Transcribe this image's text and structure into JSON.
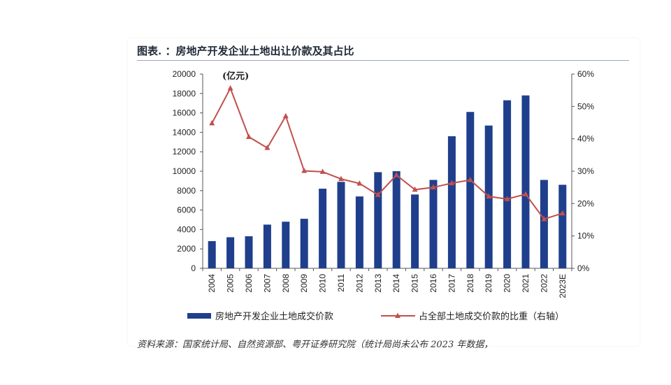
{
  "header": {
    "title": "图表. ：房地产开发企业土地出让价款及其占比"
  },
  "footer": {
    "source": "资料来源：国家统计局、自然资源部、粤开证券研究院（统计局尚未公布 2023 年数据，"
  },
  "chart_data": {
    "type": "bar",
    "title": "图表. ：房地产开发企业土地出让价款及其占比",
    "unit_label": "(亿元)",
    "categories": [
      "2004",
      "2005",
      "2006",
      "2007",
      "2008",
      "2009",
      "2010",
      "2011",
      "2012",
      "2013",
      "2014",
      "2015",
      "2016",
      "2017",
      "2018",
      "2019",
      "2020",
      "2021",
      "2022",
      "2023E"
    ],
    "y_left": {
      "min": 0,
      "max": 20000,
      "ticks": [
        "0",
        "2000",
        "4000",
        "6000",
        "8000",
        "10000",
        "12000",
        "14000",
        "16000",
        "18000",
        "20000"
      ]
    },
    "y_right": {
      "min": 0,
      "max": 60,
      "ticks": [
        "0%",
        "10%",
        "20%",
        "30%",
        "40%",
        "50%",
        "60%"
      ]
    },
    "grid": false,
    "legend_position": "bottom",
    "series": [
      {
        "name": "房地产开发企业土地成交价款",
        "type": "bar",
        "axis": "left",
        "color": "#1f3f8c",
        "values": [
          2800,
          3200,
          3300,
          4500,
          4800,
          5100,
          8200,
          8900,
          7400,
          9900,
          10000,
          7600,
          9100,
          13600,
          16100,
          14700,
          17300,
          17800,
          9100,
          8600
        ]
      },
      {
        "name": "占全部土地成交价款的比重（右轴）",
        "type": "line",
        "axis": "right",
        "color": "#c0504d",
        "marker": "triangle",
        "values": [
          44.8,
          55.6,
          40.6,
          37.2,
          47.0,
          30.1,
          29.8,
          27.6,
          26.2,
          22.7,
          28.8,
          24.3,
          25.0,
          26.3,
          27.3,
          22.2,
          21.4,
          22.9,
          15.2,
          17.0
        ]
      }
    ]
  }
}
